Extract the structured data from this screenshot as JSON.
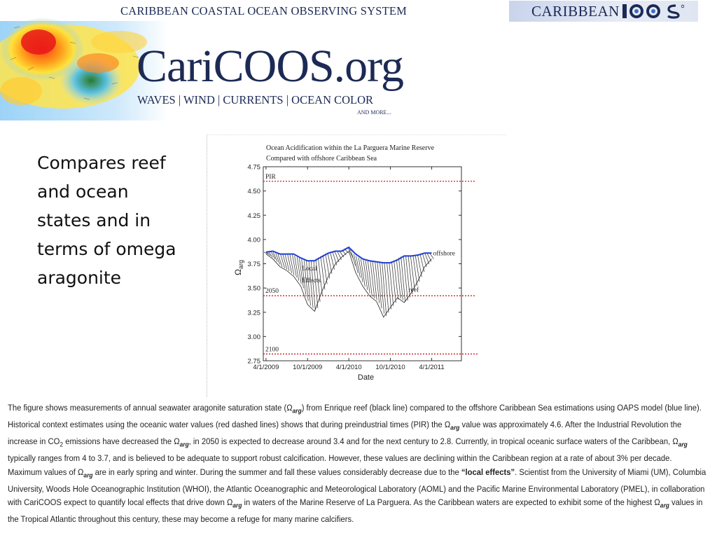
{
  "header": {
    "org_full_name": "CARIBBEAN COASTAL OCEAN OBSERVING SYSTEM",
    "site_title": "CariCOOS.org",
    "tagline": "WAVES | WIND | CURRENTS | OCEAN COLOR",
    "tagline_more": "AND MORE...",
    "partner_logo_text": "CARIBBEAN",
    "partner_logo_mark": "IOOS"
  },
  "slide": {
    "bullet_text": "Compares reef and ocean states and in terms of omega aragonite"
  },
  "chart_data": {
    "type": "line",
    "title_line1": "Ocean Acidification within the La Parguera Marine Reserve",
    "title_line2": "Compared with offshore Caribbean Sea",
    "xlabel": "Date",
    "ylabel": "Ω",
    "ylabel_sub": "arg",
    "ylim": [
      2.75,
      4.75
    ],
    "yticks": [
      "4.75",
      "4.50",
      "4.25",
      "4.00",
      "3.75",
      "3.50",
      "3.25",
      "3.00",
      "2.75"
    ],
    "xticks": [
      "4/1/2009",
      "10/1/2009",
      "4/1/2010",
      "10/1/2010",
      "4/1/2011"
    ],
    "reference_lines": [
      {
        "label": "PIR",
        "value": 4.6
      },
      {
        "label": "2050",
        "value": 3.42
      },
      {
        "label": "2100",
        "value": 2.82
      }
    ],
    "series": [
      {
        "name": "offshore",
        "color": "#1f3fd1",
        "points": [
          [
            "2009-04-01",
            3.87
          ],
          [
            "2009-05-01",
            3.88
          ],
          [
            "2009-06-01",
            3.85
          ],
          [
            "2009-07-01",
            3.85
          ],
          [
            "2009-08-01",
            3.85
          ],
          [
            "2009-09-01",
            3.81
          ],
          [
            "2009-10-01",
            3.78
          ],
          [
            "2009-11-01",
            3.78
          ],
          [
            "2009-12-01",
            3.82
          ],
          [
            "2010-01-01",
            3.86
          ],
          [
            "2010-02-01",
            3.88
          ],
          [
            "2010-03-01",
            3.88
          ],
          [
            "2010-04-01",
            3.92
          ],
          [
            "2010-05-01",
            3.85
          ],
          [
            "2010-06-01",
            3.8
          ],
          [
            "2010-07-01",
            3.78
          ],
          [
            "2010-08-01",
            3.77
          ],
          [
            "2010-09-01",
            3.76
          ],
          [
            "2010-10-01",
            3.76
          ],
          [
            "2010-11-01",
            3.79
          ],
          [
            "2010-12-01",
            3.83
          ],
          [
            "2011-01-01",
            3.83
          ],
          [
            "2011-02-01",
            3.84
          ],
          [
            "2011-03-01",
            3.86
          ],
          [
            "2011-04-01",
            3.86
          ]
        ]
      },
      {
        "name": "reef",
        "color": "#222222",
        "points": [
          [
            "2009-04-01",
            3.85
          ],
          [
            "2009-05-01",
            3.8
          ],
          [
            "2009-06-01",
            3.72
          ],
          [
            "2009-07-01",
            3.68
          ],
          [
            "2009-08-01",
            3.62
          ],
          [
            "2009-09-01",
            3.52
          ],
          [
            "2009-10-01",
            3.33
          ],
          [
            "2009-11-01",
            3.26
          ],
          [
            "2009-12-01",
            3.45
          ],
          [
            "2010-01-01",
            3.62
          ],
          [
            "2010-02-01",
            3.75
          ],
          [
            "2010-03-01",
            3.82
          ],
          [
            "2010-04-01",
            3.88
          ],
          [
            "2010-05-01",
            3.66
          ],
          [
            "2010-06-01",
            3.52
          ],
          [
            "2010-07-01",
            3.42
          ],
          [
            "2010-08-01",
            3.36
          ],
          [
            "2010-09-01",
            3.2
          ],
          [
            "2010-10-01",
            3.3
          ],
          [
            "2010-11-01",
            3.4
          ],
          [
            "2010-12-01",
            3.35
          ],
          [
            "2011-01-01",
            3.45
          ],
          [
            "2011-02-01",
            3.58
          ],
          [
            "2011-03-01",
            3.72
          ],
          [
            "2011-04-01",
            3.8
          ]
        ]
      }
    ],
    "annotations": [
      "Local",
      "Effects"
    ]
  },
  "caption": {
    "parts": [
      {
        "t": "The figure shows measurements of annual seawater aragonite saturation state (Ω"
      },
      {
        "t": "arg",
        "sub": true
      },
      {
        "t": ") from Enrique reef (black line) compared to the offshore Caribbean Sea estimations using OAPS model (blue line). Historical context estimates using the oceanic water values (red dashed lines) shows that during preindustrial times (PIR) the Ω"
      },
      {
        "t": "arg",
        "sub": true
      },
      {
        "t": " value was approximately 4.6. After the Industrial Revolution the increase in CO"
      },
      {
        "t": "2",
        "sub": true,
        "plain": true
      },
      {
        "t": " emissions have decreased the Ω"
      },
      {
        "t": "arg",
        "sub": true
      },
      {
        "t": ", in 2050 is expected to decrease around 3.4 and for the next century to 2.8. Currently, in tropical oceanic surface waters of the Caribbean, Ω"
      },
      {
        "t": "arg",
        "sub": true
      },
      {
        "t": " typically ranges from 4 to 3.7, and is believed to be adequate to support robust calcification. However, these values are declining within the Caribbean region at a rate of about 3% per decade. Maximum values of  Ω"
      },
      {
        "t": "arg",
        "sub": true
      },
      {
        "t": " are in early spring and winter. During the summer and fall these values considerably decrease due to the "
      },
      {
        "t": "“local effects”",
        "bold": true
      },
      {
        "t": ". Scientist from the University of Miami (UM), Columbia University, Woods Hole Oceanographic Institution (WHOI), the Atlantic Oceanographic and Meteorological Laboratory (AOML) and the Pacific Marine Environmental Laboratory (PMEL), in collaboration with  CariCOOS expect to quantify local effects that drive down Ω"
      },
      {
        "t": "arg",
        "sub": true
      },
      {
        "t": " in waters of the Marine Reserve of La Parguera. As the Caribbean waters are expected to exhibit some of the highest Ω"
      },
      {
        "t": "arg",
        "sub": true
      },
      {
        "t": " values in the Tropical Atlantic throughout this century, these may become a refuge for many marine calcifiers."
      }
    ]
  }
}
